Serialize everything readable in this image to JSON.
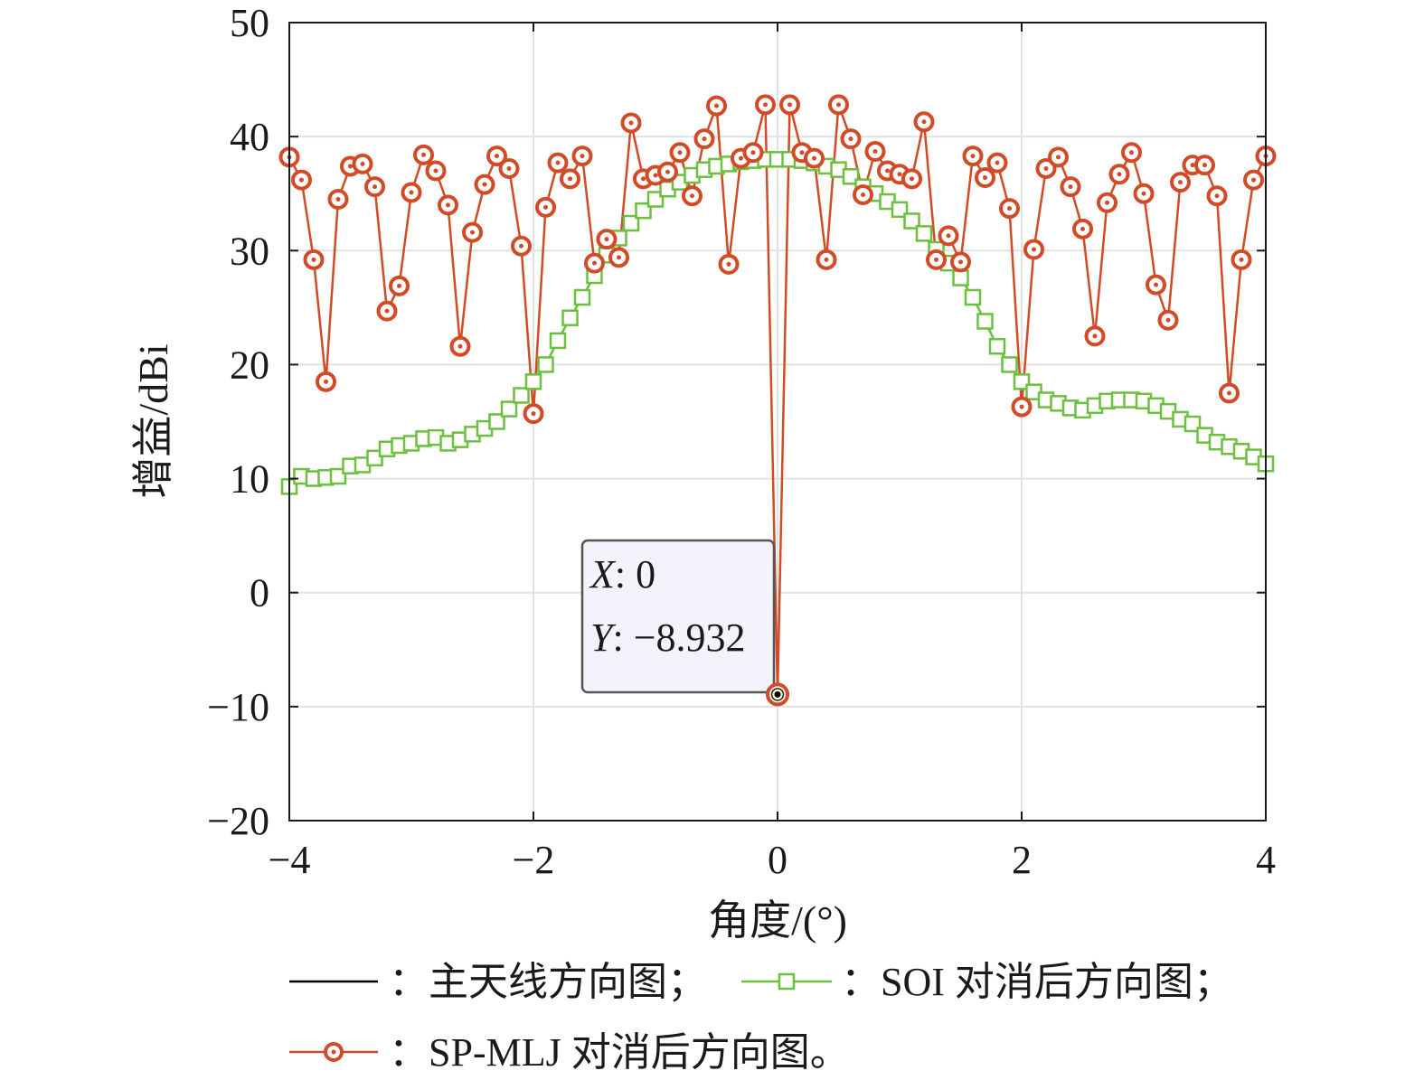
{
  "chart_data": {
    "type": "line",
    "xlabel": "角度/(°)",
    "ylabel": "增益/dBi",
    "xlim": [
      -4,
      4
    ],
    "ylim": [
      -20,
      50
    ],
    "xticks": [
      -4,
      -2,
      0,
      2,
      4
    ],
    "xtick_labels": [
      "−4",
      "−2",
      "0",
      "2",
      "4"
    ],
    "yticks": [
      -20,
      -10,
      0,
      10,
      20,
      30,
      40,
      50
    ],
    "ytick_labels": [
      "−20",
      "−10",
      "0",
      "10",
      "20",
      "30",
      "40",
      "50"
    ],
    "grid": true,
    "legend_position": "bottom",
    "series": [
      {
        "name": "主天线方向图",
        "legend_label": "：主天线方向图；",
        "color": "#000000",
        "marker": "none",
        "x": [
          -4.0,
          -3.9,
          -3.8,
          -3.7,
          -3.6,
          -3.5,
          -3.4,
          -3.3,
          -3.2,
          -3.1,
          -3.0,
          -2.9,
          -2.8,
          -2.7,
          -2.6,
          -2.5,
          -2.4,
          -2.3,
          -2.2,
          -2.1,
          -2.0,
          -1.9,
          -1.8,
          -1.7,
          -1.6,
          -1.5,
          -1.4,
          -1.3,
          -1.2,
          -1.1,
          -1.0,
          -0.9,
          -0.8,
          -0.7,
          -0.6,
          -0.5,
          -0.4,
          -0.3,
          -0.2,
          -0.1,
          0.0,
          0.1,
          0.2,
          0.3,
          0.4,
          0.5,
          0.6,
          0.7,
          0.8,
          0.9,
          1.0,
          1.1,
          1.2,
          1.3,
          1.4,
          1.5,
          1.6,
          1.7,
          1.8,
          1.9,
          2.0,
          2.1,
          2.2,
          2.3,
          2.4,
          2.5,
          2.6,
          2.7,
          2.8,
          2.9,
          3.0,
          3.1,
          3.2,
          3.3,
          3.4,
          3.5,
          3.6,
          3.7,
          3.8,
          3.9,
          4.0
        ],
        "y": [
          9.3,
          10.2,
          10.0,
          10.1,
          10.2,
          11.1,
          11.2,
          11.8,
          12.6,
          12.9,
          13.1,
          13.5,
          13.6,
          13.1,
          13.4,
          13.9,
          14.4,
          15.0,
          16.1,
          17.3,
          18.5,
          20.0,
          22.1,
          24.1,
          25.9,
          27.8,
          29.6,
          31.1,
          32.4,
          33.5,
          34.5,
          35.4,
          36.0,
          36.6,
          37.1,
          37.4,
          37.6,
          37.8,
          37.9,
          38.0,
          38.0,
          38.0,
          37.9,
          37.7,
          37.4,
          37.1,
          36.5,
          35.6,
          35.0,
          34.3,
          33.6,
          32.6,
          31.5,
          30.1,
          28.9,
          27.6,
          25.9,
          23.8,
          21.6,
          20.0,
          18.5,
          17.6,
          16.9,
          16.6,
          16.2,
          16.0,
          16.4,
          16.8,
          16.9,
          16.9,
          16.8,
          16.4,
          15.9,
          15.2,
          14.8,
          13.8,
          13.2,
          12.8,
          12.4,
          11.9,
          11.3
        ]
      },
      {
        "name": "SOI 对消后方向图",
        "legend_label": "：SOI 对消后方向图；",
        "color": "#6cbf3f",
        "marker": "square",
        "x": [
          -4.0,
          -3.9,
          -3.8,
          -3.7,
          -3.6,
          -3.5,
          -3.4,
          -3.3,
          -3.2,
          -3.1,
          -3.0,
          -2.9,
          -2.8,
          -2.7,
          -2.6,
          -2.5,
          -2.4,
          -2.3,
          -2.2,
          -2.1,
          -2.0,
          -1.9,
          -1.8,
          -1.7,
          -1.6,
          -1.5,
          -1.4,
          -1.3,
          -1.2,
          -1.1,
          -1.0,
          -0.9,
          -0.8,
          -0.7,
          -0.6,
          -0.5,
          -0.4,
          -0.3,
          -0.2,
          -0.1,
          0.0,
          0.1,
          0.2,
          0.3,
          0.4,
          0.5,
          0.6,
          0.7,
          0.8,
          0.9,
          1.0,
          1.1,
          1.2,
          1.3,
          1.4,
          1.5,
          1.6,
          1.7,
          1.8,
          1.9,
          2.0,
          2.1,
          2.2,
          2.3,
          2.4,
          2.5,
          2.6,
          2.7,
          2.8,
          2.9,
          3.0,
          3.1,
          3.2,
          3.3,
          3.4,
          3.5,
          3.6,
          3.7,
          3.8,
          3.9,
          4.0
        ],
        "y": [
          9.3,
          10.2,
          10.0,
          10.1,
          10.2,
          11.1,
          11.2,
          11.8,
          12.6,
          12.9,
          13.1,
          13.5,
          13.6,
          13.1,
          13.4,
          13.9,
          14.4,
          15.0,
          16.1,
          17.3,
          18.5,
          20.0,
          22.1,
          24.1,
          25.9,
          27.8,
          29.6,
          31.1,
          32.4,
          33.5,
          34.5,
          35.4,
          36.0,
          36.6,
          37.1,
          37.4,
          37.6,
          37.8,
          37.9,
          38.0,
          38.0,
          38.0,
          37.9,
          37.7,
          37.4,
          37.1,
          36.5,
          35.6,
          35.0,
          34.3,
          33.6,
          32.6,
          31.5,
          30.1,
          28.9,
          27.6,
          25.9,
          23.8,
          21.6,
          20.0,
          18.5,
          17.6,
          16.9,
          16.6,
          16.2,
          16.0,
          16.4,
          16.8,
          16.9,
          16.9,
          16.8,
          16.4,
          15.9,
          15.2,
          14.8,
          13.8,
          13.2,
          12.8,
          12.4,
          11.9,
          11.3
        ]
      },
      {
        "name": "SP-MLJ 对消后方向图",
        "legend_label": "：SP-MLJ 对消后方向图。",
        "color": "#d14b26",
        "marker": "circle",
        "x": [
          -4.0,
          -3.9,
          -3.8,
          -3.7,
          -3.6,
          -3.5,
          -3.4,
          -3.3,
          -3.2,
          -3.1,
          -3.0,
          -2.9,
          -2.8,
          -2.7,
          -2.6,
          -2.5,
          -2.4,
          -2.3,
          -2.2,
          -2.1,
          -2.0,
          -1.9,
          -1.8,
          -1.7,
          -1.6,
          -1.5,
          -1.4,
          -1.3,
          -1.2,
          -1.1,
          -1.0,
          -0.9,
          -0.8,
          -0.7,
          -0.6,
          -0.5,
          -0.4,
          -0.3,
          -0.2,
          -0.1,
          0.0,
          0.1,
          0.2,
          0.3,
          0.4,
          0.5,
          0.6,
          0.7,
          0.8,
          0.9,
          1.0,
          1.1,
          1.2,
          1.3,
          1.4,
          1.5,
          1.6,
          1.7,
          1.8,
          1.9,
          2.0,
          2.1,
          2.2,
          2.3,
          2.4,
          2.5,
          2.6,
          2.7,
          2.8,
          2.9,
          3.0,
          3.1,
          3.2,
          3.3,
          3.4,
          3.5,
          3.6,
          3.7,
          3.8,
          3.9,
          4.0
        ],
        "y": [
          38.2,
          36.2,
          29.2,
          18.5,
          34.5,
          37.4,
          37.6,
          35.6,
          24.7,
          26.9,
          35.1,
          38.4,
          37.0,
          34.0,
          21.6,
          31.6,
          35.8,
          38.3,
          37.2,
          30.4,
          15.7,
          33.8,
          37.7,
          36.3,
          38.3,
          28.9,
          31.0,
          29.4,
          41.2,
          36.3,
          36.6,
          36.9,
          38.6,
          34.8,
          39.8,
          42.7,
          28.8,
          38.1,
          38.6,
          42.8,
          -8.932,
          42.8,
          38.6,
          38.1,
          29.2,
          42.8,
          39.8,
          34.9,
          38.7,
          37.0,
          36.7,
          36.3,
          41.3,
          29.2,
          31.3,
          29.0,
          38.3,
          36.4,
          37.7,
          33.7,
          16.3,
          30.1,
          37.2,
          38.2,
          35.6,
          31.9,
          22.5,
          34.2,
          36.7,
          38.6,
          35.0,
          27.0,
          23.9,
          36.0,
          37.5,
          37.5,
          34.8,
          17.5,
          29.2,
          36.2,
          38.3
        ]
      }
    ],
    "annotations": [
      {
        "type": "datatip",
        "x_label": "X",
        "x_value": "0",
        "y_label": "Y",
        "y_value": "−8.932",
        "target_x": 0,
        "target_y": -8.932
      }
    ]
  }
}
